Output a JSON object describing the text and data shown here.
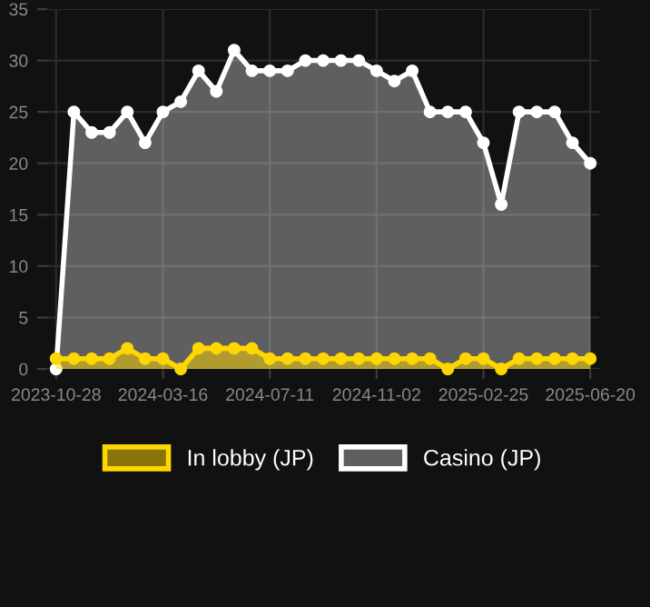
{
  "chart_data": {
    "type": "area",
    "categories": [
      "2023-10-28",
      null,
      null,
      null,
      null,
      null,
      "2024-03-16",
      null,
      null,
      null,
      null,
      null,
      "2024-07-11",
      null,
      null,
      null,
      null,
      null,
      "2024-11-02",
      null,
      null,
      null,
      null,
      null,
      "2025-02-25",
      null,
      null,
      null,
      null,
      null,
      "2025-06-20"
    ],
    "series": [
      {
        "name": "In lobby (JP)",
        "color": "#ffd700",
        "values": [
          1,
          1,
          1,
          1,
          2,
          1,
          1,
          0,
          2,
          2,
          2,
          2,
          1,
          1,
          1,
          1,
          1,
          1,
          1,
          1,
          1,
          1,
          0,
          1,
          1,
          0,
          1,
          1,
          1,
          1,
          1
        ]
      },
      {
        "name": "Casino (JP)",
        "color": "#ffffff",
        "values": [
          0,
          25,
          23,
          23,
          25,
          22,
          25,
          26,
          29,
          27,
          31,
          29,
          29,
          29,
          30,
          30,
          30,
          30,
          29,
          28,
          29,
          25,
          25,
          25,
          22,
          16,
          25,
          25,
          25,
          22,
          20
        ]
      }
    ],
    "ylim": [
      0,
      35
    ],
    "yticks": [
      0,
      5,
      10,
      15,
      20,
      25,
      30,
      35
    ],
    "grid": true,
    "legend": "bottom",
    "marker": "circle",
    "line_style": "solid"
  }
}
